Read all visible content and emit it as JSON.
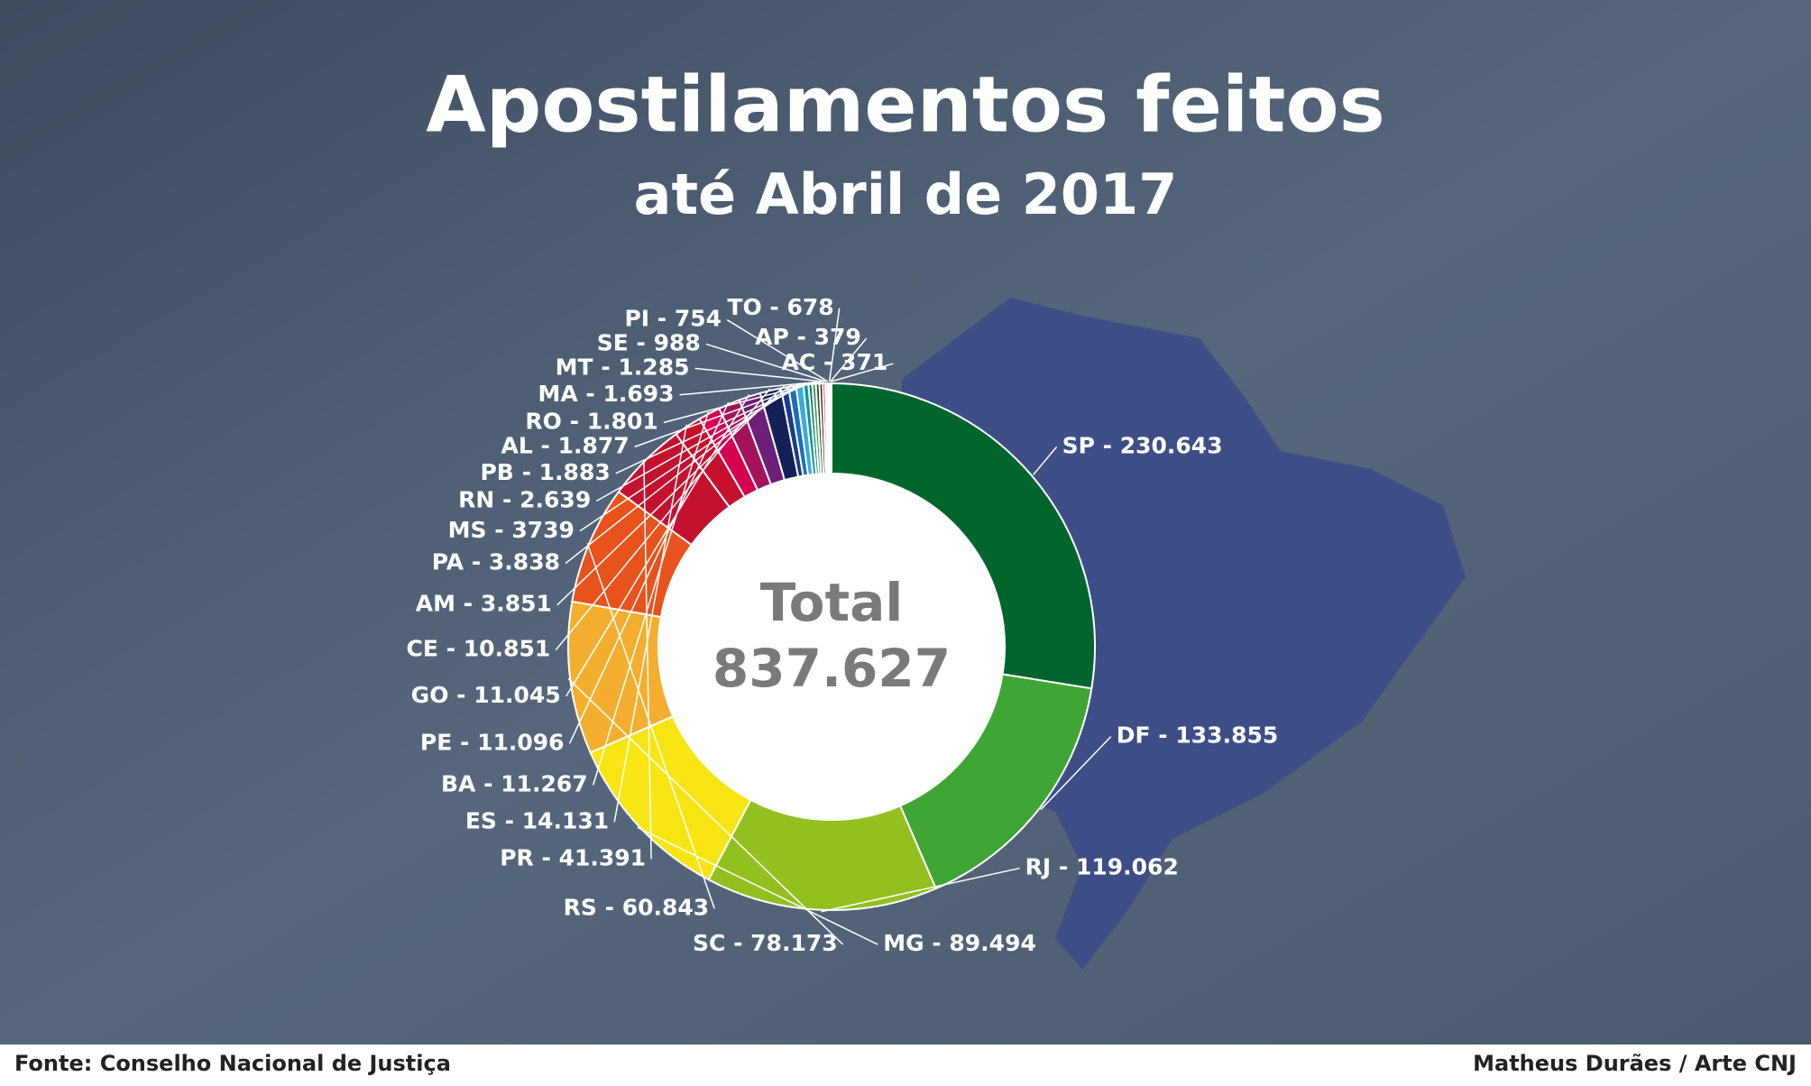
{
  "chart_data": {
    "type": "donut",
    "title": "Apostilamentos feitos",
    "subtitle": "até Abril de 2017",
    "center_label": "Total",
    "total": 837627,
    "total_label": "837.627",
    "separator": " - ",
    "categories": [
      "SP",
      "DF",
      "RJ",
      "MG",
      "SC",
      "RS",
      "PR",
      "ES",
      "BA",
      "PE",
      "GO",
      "CE",
      "AM",
      "PA",
      "MS",
      "RN",
      "PB",
      "AL",
      "RO",
      "MA",
      "MT",
      "SE",
      "PI",
      "TO",
      "AP",
      "AC"
    ],
    "values": [
      230643,
      133855,
      119062,
      89494,
      78173,
      60843,
      41391,
      14131,
      11267,
      11096,
      11045,
      10851,
      3851,
      3838,
      3739,
      2639,
      1883,
      1877,
      1801,
      1693,
      1285,
      988,
      754,
      678,
      379,
      371
    ],
    "value_labels": [
      "230.643",
      "133.855",
      "119.062",
      "89.494",
      "78.173",
      "60.843",
      "41.391",
      "14.131",
      "11.267",
      "11.096",
      "11.045",
      "10.851",
      "3.851",
      "3.838",
      "3739",
      "2.639",
      "1.883",
      "1.877",
      "1.801",
      "1.693",
      "1.285",
      "988",
      "754",
      "678",
      "379",
      "371"
    ],
    "colors": [
      "#00662e",
      "#3fa535",
      "#93c01f",
      "#f7e613",
      "#f4ae2f",
      "#e8521c",
      "#c4122e",
      "#c7102e",
      "#d5004f",
      "#a3125a",
      "#6d2077",
      "#142058",
      "#1b3a8c",
      "#1a6fb5",
      "#3ba9dc",
      "#009b8f",
      "#0f7563",
      "#3f9f4f",
      "#14552a",
      "#5c1d10",
      "#b7122e",
      "#d3074f",
      "#9c1673",
      "#1c2a6b",
      "#0f9aa8",
      "#2fa562"
    ],
    "source": "Fonte: Conselho Nacional de Justiça",
    "credit": "Matheus Durães / Arte CNJ"
  }
}
